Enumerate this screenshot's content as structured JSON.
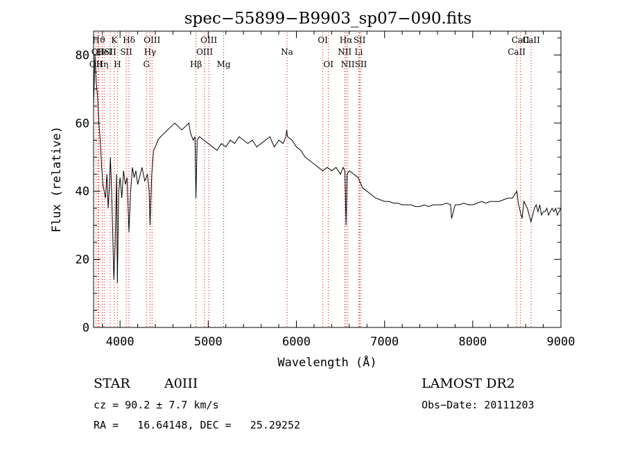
{
  "chart_data": {
    "type": "line",
    "title": "spec−55899−B9903_sp07−090.fits",
    "xlabel": "Wavelength (Å)",
    "ylabel": "Flux (relative)",
    "xlim": [
      3700,
      9000
    ],
    "ylim": [
      0,
      87
    ],
    "xticks": [
      4000,
      5000,
      6000,
      7000,
      8000,
      9000
    ],
    "yticks": [
      0,
      20,
      40,
      60,
      80
    ],
    "grid": false,
    "line_color": "#000000",
    "marker_color": "#cc0000",
    "spectrum": {
      "x": [
        3700,
        3715,
        3730,
        3745,
        3760,
        3775,
        3790,
        3805,
        3820,
        3835,
        3850,
        3865,
        3880,
        3890,
        3900,
        3915,
        3930,
        3945,
        3960,
        3970,
        3985,
        4000,
        4020,
        4040,
        4060,
        4080,
        4101,
        4120,
        4140,
        4160,
        4180,
        4200,
        4220,
        4250,
        4280,
        4310,
        4330,
        4340,
        4360,
        4380,
        4400,
        4430,
        4460,
        4500,
        4540,
        4580,
        4620,
        4660,
        4700,
        4740,
        4780,
        4800,
        4830,
        4850,
        4861,
        4875,
        4900,
        4950,
        5000,
        5050,
        5100,
        5150,
        5200,
        5250,
        5300,
        5350,
        5400,
        5450,
        5500,
        5550,
        5600,
        5650,
        5700,
        5750,
        5800,
        5850,
        5880,
        5890,
        5900,
        5950,
        6000,
        6050,
        6100,
        6150,
        6200,
        6250,
        6300,
        6350,
        6400,
        6450,
        6500,
        6530,
        6550,
        6563,
        6575,
        6600,
        6650,
        6700,
        6750,
        6800,
        6850,
        6900,
        6950,
        7000,
        7050,
        7100,
        7150,
        7200,
        7250,
        7300,
        7350,
        7400,
        7450,
        7500,
        7550,
        7600,
        7650,
        7700,
        7750,
        7760,
        7800,
        7850,
        7900,
        7950,
        8000,
        8050,
        8100,
        8150,
        8200,
        8250,
        8300,
        8350,
        8400,
        8450,
        8500,
        8520,
        8540,
        8560,
        8580,
        8600,
        8620,
        8640,
        8660,
        8680,
        8700,
        8720,
        8740,
        8760,
        8780,
        8800,
        8820,
        8840,
        8860,
        8880,
        8900,
        8920,
        8940,
        8960,
        8980,
        9000
      ],
      "y": [
        65,
        80,
        72,
        68,
        60,
        55,
        48,
        42,
        40,
        38,
        45,
        35,
        42,
        50,
        44,
        30,
        14,
        25,
        45,
        13,
        40,
        44,
        38,
        46,
        42,
        44,
        28,
        40,
        47,
        44,
        46,
        42,
        44,
        47,
        43,
        45,
        40,
        30,
        45,
        52,
        53,
        55,
        56,
        57,
        58,
        59,
        60,
        59,
        58,
        59,
        60,
        57,
        55,
        56,
        38,
        55,
        56,
        55,
        54,
        53,
        52,
        54,
        53,
        55,
        54,
        56,
        55,
        54,
        55,
        53,
        54,
        55,
        56,
        53,
        55,
        54,
        56,
        58,
        56,
        55,
        53,
        52,
        50,
        49,
        48,
        47,
        46,
        47,
        46,
        47,
        45,
        47,
        46,
        30,
        45,
        46,
        45,
        44,
        41,
        40,
        39,
        38,
        37.5,
        37,
        37,
        36.5,
        36.5,
        36,
        36,
        36,
        35.5,
        35.5,
        36,
        35.5,
        36,
        36,
        36,
        36.5,
        36,
        32,
        36,
        36,
        36.5,
        36,
        36,
        36.5,
        37,
        36.5,
        37,
        37,
        37,
        37.5,
        38,
        38,
        40,
        36,
        34,
        32,
        37,
        36,
        35,
        33,
        31,
        33,
        35,
        36,
        34,
        36,
        33,
        34,
        34,
        35,
        33,
        34,
        35,
        34,
        35,
        33,
        34,
        35
      ]
    },
    "annotations": [
      {
        "x": 3727,
        "label": "OII",
        "row": 3
      },
      {
        "x": 3750,
        "label": "OΙΙ",
        "row": 2
      },
      {
        "x": 3760,
        "label": "Hϑ",
        "row": 1
      },
      {
        "x": 3798,
        "label": "Hη",
        "row": 3
      },
      {
        "x": 3820,
        "label": "HeI",
        "row": 2
      },
      {
        "x": 3889,
        "label": "SII",
        "row": 2
      },
      {
        "x": 3934,
        "label": "K",
        "row": 1
      },
      {
        "x": 3970,
        "label": "H",
        "row": 3
      },
      {
        "x": 4101,
        "label": "Hδ",
        "row": 1
      },
      {
        "x": 4070,
        "label": "SII",
        "row": 2
      },
      {
        "x": 4300,
        "label": "G",
        "row": 3
      },
      {
        "x": 4340,
        "label": "Hγ",
        "row": 2
      },
      {
        "x": 4363,
        "label": "OIII",
        "row": 1
      },
      {
        "x": 4861,
        "label": "Hβ",
        "row": 3
      },
      {
        "x": 4959,
        "label": "OIII",
        "row": 2
      },
      {
        "x": 5007,
        "label": "OIII",
        "row": 1
      },
      {
        "x": 5175,
        "label": "Mg",
        "row": 3
      },
      {
        "x": 5894,
        "label": "Na",
        "row": 2
      },
      {
        "x": 6300,
        "label": "OI",
        "row": 1
      },
      {
        "x": 6363,
        "label": "OI",
        "row": 3
      },
      {
        "x": 6548,
        "label": "NII",
        "row": 2
      },
      {
        "x": 6563,
        "label": "Hα",
        "row": 1
      },
      {
        "x": 6583,
        "label": "NII",
        "row": 3
      },
      {
        "x": 6707,
        "label": "Li",
        "row": 2
      },
      {
        "x": 6716,
        "label": "SII",
        "row": 1
      },
      {
        "x": 6731,
        "label": "SII",
        "row": 3
      },
      {
        "x": 8498,
        "label": "CaII",
        "row": 2
      },
      {
        "x": 8542,
        "label": "CaII",
        "row": 1
      },
      {
        "x": 8662,
        "label": "CaII",
        "row": 1
      }
    ]
  },
  "info": {
    "class_label": "STAR",
    "subclass": "A0III",
    "cz": "cz = 90.2 ± 7.7 km/s",
    "coords": "RA =   16.64148, DEC =   25.29252",
    "survey": "LAMOST DR2",
    "obs_date": "Obs−Date: 20111203"
  }
}
